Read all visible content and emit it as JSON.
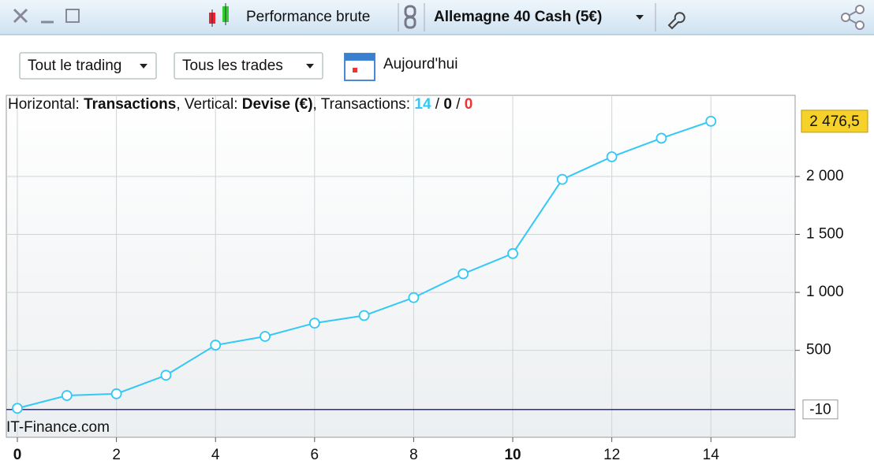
{
  "toolbar": {
    "title": "Performance brute",
    "instrument": "Allemagne 40 Cash (5€)"
  },
  "controls": {
    "filter1": "Tout le trading",
    "filter2": "Tous les trades",
    "date": "Aujourd'hui"
  },
  "chart_data": {
    "type": "line",
    "info": {
      "h_label": "Horizontal: ",
      "h_value": "Transactions",
      "v_label": ", Vertical: ",
      "v_value": "Devise (€)",
      "t_label": ", Transactions: ",
      "count_total": 14,
      "sep1": " / ",
      "count_flat": 0,
      "sep2": " / ",
      "count_loss": 0
    },
    "watermark": "IT-Finance.com",
    "x": [
      0,
      1,
      2,
      3,
      4,
      5,
      6,
      7,
      8,
      9,
      10,
      11,
      12,
      13,
      14
    ],
    "series": [
      {
        "name": "Performance",
        "color": "#33c8f5",
        "values": [
          0,
          110,
          125,
          285,
          545,
          620,
          735,
          800,
          955,
          1160,
          1335,
          1975,
          2170,
          2330,
          2476.5
        ],
        "value_labels": [
          null,
          null,
          null,
          null,
          null,
          null,
          null,
          null,
          null,
          null,
          null,
          null,
          null,
          null,
          "2 476,5"
        ]
      }
    ],
    "min_line": -10,
    "min_line_color": "#2b2ba6",
    "xlim": [
      0,
      15.7
    ],
    "ylim": [
      -250,
      2700
    ],
    "xticks": [
      0,
      2,
      4,
      6,
      8,
      10,
      12,
      14
    ],
    "xticks_bold": [
      0,
      10
    ],
    "yticks": [
      500,
      {
        "value": 1000,
        "label": "1 000"
      },
      {
        "value": 1500,
        "label": "1 500"
      },
      {
        "value": 2000,
        "label": "2 000"
      }
    ],
    "grid": true
  }
}
